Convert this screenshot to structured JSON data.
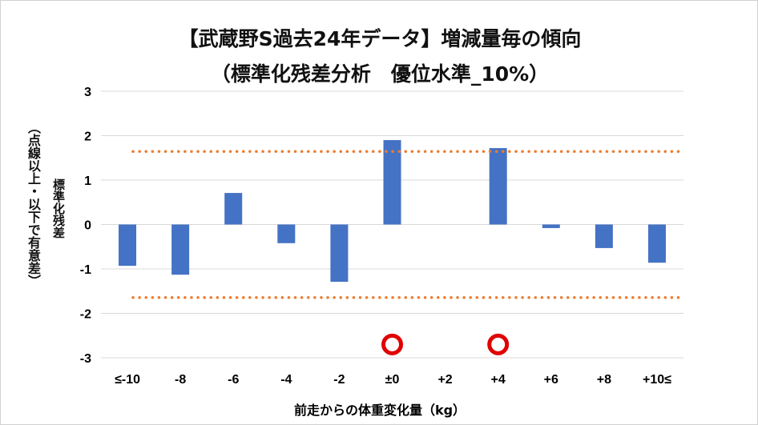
{
  "chart_data": {
    "type": "bar",
    "title": "【武蔵野S過去24年データ】増減量毎の傾向",
    "subtitle": "（標準化残差分析　優位水準_10%）",
    "xlabel": "前走からの体重変化量（kg）",
    "ylabel": "標準化残差",
    "ylabel_note": "（点線以上・以下で有意差）",
    "categories": [
      "≤-10",
      "-8",
      "-6",
      "-4",
      "-2",
      "±0",
      "+2",
      "+4",
      "+6",
      "+8",
      "+10≤"
    ],
    "values": [
      -0.93,
      -1.13,
      0.71,
      -0.42,
      -1.29,
      1.9,
      0,
      1.72,
      -0.08,
      -0.53,
      -0.86
    ],
    "ylim": [
      -3,
      3
    ],
    "yticks": [
      3,
      2,
      1,
      0,
      -1,
      -2,
      -3
    ],
    "grid": true,
    "thresholds": [
      1.645,
      -1.645
    ],
    "markers": [
      {
        "category": "±0",
        "y": -2.7
      },
      {
        "category": "+4",
        "y": -2.7
      }
    ],
    "colors": {
      "bar": "#4472C4",
      "threshold": "#ED7D31",
      "marker": "#E00000",
      "grid": "#D9D9D9"
    }
  }
}
